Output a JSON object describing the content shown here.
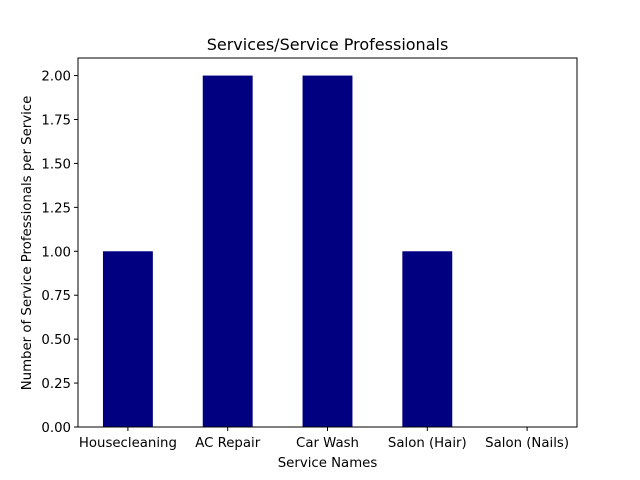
{
  "chart_data": {
    "type": "bar",
    "title": "Services/Service Professionals",
    "xlabel": "Service Names",
    "ylabel": "Number of Service Professionals per Service",
    "categories": [
      "Housecleaning",
      "AC Repair",
      "Car Wash",
      "Salon (Hair)",
      "Salon (Nails)"
    ],
    "values": [
      1,
      2,
      2,
      1,
      0
    ],
    "ylim": [
      0,
      2.1
    ],
    "yticks": [
      0.0,
      0.25,
      0.5,
      0.75,
      1.0,
      1.25,
      1.5,
      1.75,
      2.0
    ],
    "ytick_labels": [
      "0.00",
      "0.25",
      "0.50",
      "0.75",
      "1.00",
      "1.25",
      "1.50",
      "1.75",
      "2.00"
    ],
    "grid": false,
    "bar_color": "#000080"
  }
}
